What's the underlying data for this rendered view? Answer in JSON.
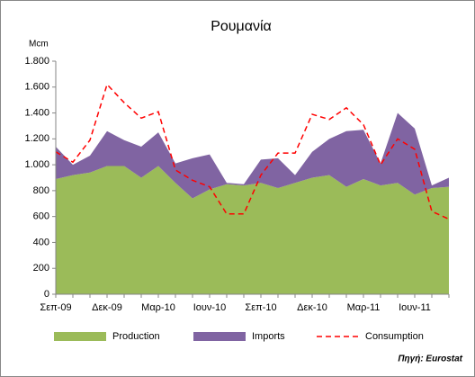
{
  "chart_data": {
    "type": "stacked-area-line",
    "title": "Ρουμανία",
    "y_label": "Mcm",
    "source": "Πηγή: Eurostat",
    "categories": [
      "Σεπ-09",
      null,
      null,
      "Δεκ-09",
      null,
      null,
      "Μαρ-10",
      null,
      null,
      "Ιουν-10",
      null,
      null,
      "Σεπ-10",
      null,
      null,
      "Δεκ-10",
      null,
      null,
      "Μαρ-11",
      null,
      null,
      "Ιουν-11",
      null,
      null
    ],
    "series": [
      {
        "name": "Production",
        "color": "#9bbb59",
        "kind": "area",
        "values": [
          890,
          920,
          940,
          990,
          990,
          900,
          990,
          860,
          740,
          810,
          850,
          840,
          860,
          820,
          860,
          900,
          920,
          830,
          890,
          840,
          860,
          770,
          820,
          830
        ]
      },
      {
        "name": "Imports",
        "color": "#8064a2",
        "kind": "area",
        "values": [
          250,
          80,
          130,
          270,
          200,
          240,
          260,
          150,
          310,
          270,
          10,
          10,
          180,
          230,
          60,
          200,
          280,
          430,
          380,
          170,
          540,
          510,
          20,
          70
        ]
      },
      {
        "name": "Consumption",
        "color": "#ff0000",
        "kind": "line",
        "dashed": true,
        "values": [
          1100,
          1020,
          1190,
          1620,
          1480,
          1360,
          1410,
          960,
          880,
          830,
          620,
          620,
          920,
          1090,
          1090,
          1390,
          1350,
          1440,
          1310,
          1000,
          1200,
          1120,
          640,
          580
        ]
      }
    ],
    "ylim": [
      0,
      1800
    ],
    "yticks": [
      0,
      200,
      400,
      600,
      800,
      {
        "value": 1000,
        "label": "1.000"
      },
      {
        "value": 1200,
        "label": "1.200"
      },
      {
        "value": 1400,
        "label": "1.400"
      },
      {
        "value": 1600,
        "label": "1.600"
      },
      {
        "value": 1800,
        "label": "1.800"
      }
    ],
    "grid": false
  }
}
